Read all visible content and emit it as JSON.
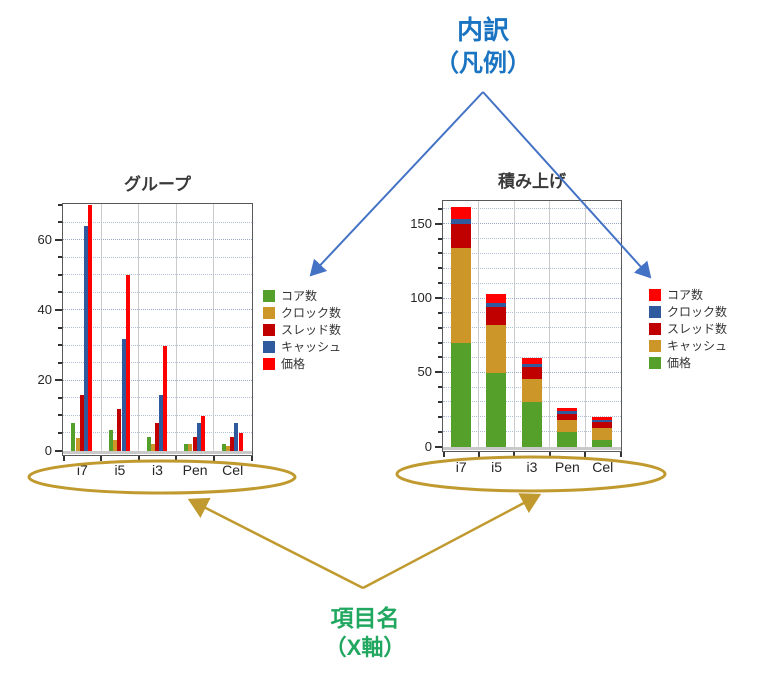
{
  "annotations": {
    "breakdown": {
      "line1": "内訳",
      "line2": "（凡例）",
      "color": "#1B74C2"
    },
    "item_names": {
      "line1": "項目名",
      "line2": "（X軸）",
      "color": "#21A75F"
    }
  },
  "colors": {
    "annotation_blue_text": "#1B74C2",
    "arrow_blue": "#4472C4",
    "annotation_green_text": "#21A75F",
    "gold_arrow_ellipse": "#C09A2E",
    "series_green": "#55A02A",
    "series_gold": "#CC9629",
    "series_darkred": "#C00000",
    "series_blue": "#2F5B9E",
    "series_red": "#FF0000"
  },
  "chart_data": [
    {
      "type": "bar",
      "title": "グループ",
      "categories": [
        "i7",
        "i5",
        "i3",
        "Pen",
        "Cel"
      ],
      "series": [
        {
          "name": "コア数",
          "color": "#55A02A",
          "values": [
            8,
            6,
            4,
            2,
            2
          ]
        },
        {
          "name": "クロック数",
          "color": "#CC9629",
          "values": [
            3.6,
            3,
            2,
            2,
            1.5
          ]
        },
        {
          "name": "スレッド数",
          "color": "#C00000",
          "values": [
            16,
            12,
            8,
            4,
            4
          ]
        },
        {
          "name": "キャッシュ",
          "color": "#2F5B9E",
          "values": [
            64,
            32,
            16,
            8,
            8
          ]
        },
        {
          "name": "価格",
          "color": "#FF0000",
          "values": [
            70,
            50,
            30,
            10,
            5
          ]
        }
      ],
      "legend": [
        {
          "label": "コア数",
          "color": "#55A02A"
        },
        {
          "label": "クロック数",
          "color": "#CC9629"
        },
        {
          "label": "スレッド数",
          "color": "#C00000"
        },
        {
          "label": "キャッシュ",
          "color": "#2F5B9E"
        },
        {
          "label": "価格",
          "color": "#FF0000"
        }
      ],
      "ylim": [
        0,
        70
      ],
      "yticks": [
        0,
        20,
        40,
        60
      ],
      "minor_tick_step": 5,
      "grid": true,
      "legend_position": "right"
    },
    {
      "type": "stacked-bar",
      "title": "積み上げ",
      "categories": [
        "i7",
        "i5",
        "i3",
        "Pen",
        "Cel"
      ],
      "series": [
        {
          "name": "価格",
          "color": "#55A02A",
          "values": [
            70,
            50,
            30,
            10,
            5
          ]
        },
        {
          "name": "キャッシュ",
          "color": "#CC9629",
          "values": [
            64,
            32,
            16,
            8,
            8
          ]
        },
        {
          "name": "スレッド数",
          "color": "#C00000",
          "values": [
            16,
            12,
            8,
            4,
            4
          ]
        },
        {
          "name": "クロック数",
          "color": "#2F5B9E",
          "values": [
            3.6,
            3,
            2,
            2,
            1.5
          ]
        },
        {
          "name": "コア数",
          "color": "#FF0000",
          "values": [
            8,
            6,
            4,
            2,
            2
          ]
        }
      ],
      "legend": [
        {
          "label": "コア数",
          "color": "#FF0000"
        },
        {
          "label": "クロック数",
          "color": "#2F5B9E"
        },
        {
          "label": "スレッド数",
          "color": "#C00000"
        },
        {
          "label": "キャッシュ",
          "color": "#CC9629"
        },
        {
          "label": "価格",
          "color": "#55A02A"
        }
      ],
      "ylim": [
        0,
        165
      ],
      "yticks": [
        0,
        50,
        100,
        150
      ],
      "minor_tick_step": 10,
      "grid": true,
      "legend_position": "right"
    }
  ]
}
